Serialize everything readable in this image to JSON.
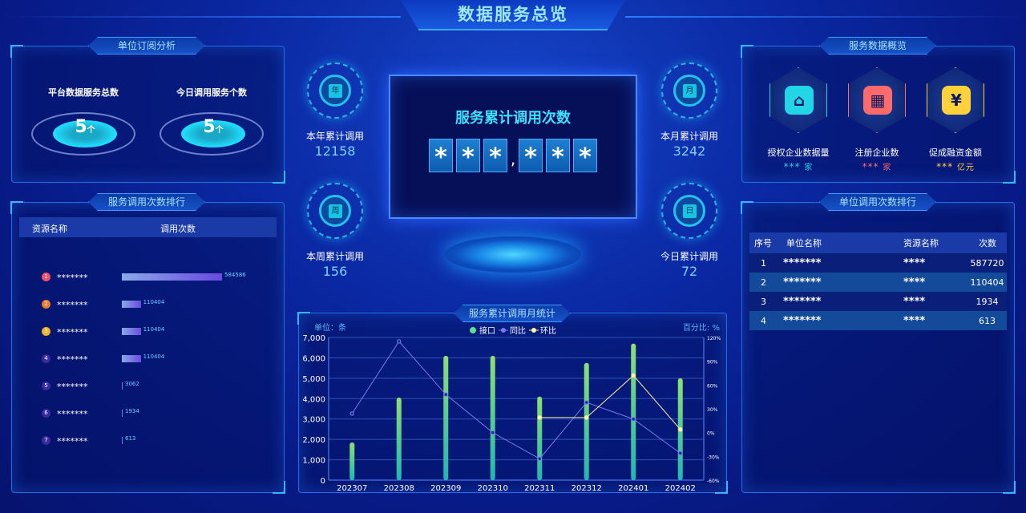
{
  "header": {
    "title": "数据服务总览"
  },
  "subscription": {
    "title": "单位订阅分析",
    "items": [
      {
        "label": "平台数据服务总数",
        "value": "5",
        "unit": "个"
      },
      {
        "label": "今日调用服务个数",
        "value": "5",
        "unit": "个"
      }
    ]
  },
  "service_rank": {
    "title": "服务调用次数排行",
    "columns": [
      "资源名称",
      "调用次数"
    ],
    "rows": [
      {
        "rank": "1",
        "name": "*******",
        "value": 584586,
        "color": "#f0506a"
      },
      {
        "rank": "2",
        "name": "*******",
        "value": 110404,
        "color": "#f07a2a"
      },
      {
        "rank": "3",
        "name": "*******",
        "value": 110404,
        "color": "#f0b02a"
      },
      {
        "rank": "4",
        "name": "*******",
        "value": 110404,
        "color": "#3a2aa0"
      },
      {
        "rank": "5",
        "name": "*******",
        "value": 3062,
        "color": "#3a2aa0"
      },
      {
        "rank": "6",
        "name": "*******",
        "value": 1934,
        "color": "#3a2aa0"
      },
      {
        "rank": "7",
        "name": "*******",
        "value": 613,
        "color": "#3a2aa0"
      }
    ]
  },
  "stats": [
    {
      "icon": "年",
      "label": "本年累计调用",
      "value": "12158"
    },
    {
      "icon": "周",
      "label": "本周累计调用",
      "value": "156"
    },
    {
      "icon": "月",
      "label": "本月累计调用",
      "value": "3242"
    },
    {
      "icon": "日",
      "label": "今日累计调用",
      "value": "72"
    }
  ],
  "total": {
    "title": "服务累计调用次数",
    "digits": [
      "*",
      "*",
      "*",
      ",",
      "*",
      "*",
      "*"
    ]
  },
  "overview": {
    "title": "服务数据概览",
    "items": [
      {
        "icon": "house-check-icon",
        "glyph": "⌂",
        "label": "授权企业数据量",
        "value": "***",
        "unit": "家",
        "color": "#22d6e8"
      },
      {
        "icon": "building-heart-icon",
        "glyph": "▦",
        "label": "注册企业数",
        "value": "***",
        "unit": "家",
        "color": "#ff6a6a"
      },
      {
        "icon": "yuan-coin-icon",
        "glyph": "¥",
        "label": "促成融资金额",
        "value": "***",
        "unit": "亿元",
        "color": "#ffd23a"
      }
    ]
  },
  "unit_rank": {
    "title": "单位调用次数排行",
    "columns": [
      "序号",
      "单位名称",
      "资源名称",
      "次数"
    ],
    "rows": [
      [
        "1",
        "*******",
        "****",
        "587720"
      ],
      [
        "2",
        "*******",
        "****",
        "110404"
      ],
      [
        "3",
        "*******",
        "****",
        "1934"
      ],
      [
        "4",
        "*******",
        "****",
        "613"
      ]
    ]
  },
  "chart_data": {
    "type": "bar",
    "title": "服务累计调用月统计",
    "unit_left": "单位：条",
    "unit_right": "百分比: %",
    "categories": [
      "202307",
      "202308",
      "202309",
      "202310",
      "202311",
      "202312",
      "202401",
      "202402"
    ],
    "ylim": [
      0,
      7000
    ],
    "yticks": [
      "0",
      "1,000",
      "2,000",
      "3,000",
      "4,000",
      "5,000",
      "6,000",
      "7,000"
    ],
    "y2lim": [
      -60,
      120
    ],
    "y2ticks": [
      "-60%",
      "-30%",
      "0%",
      "30%",
      "60%",
      "90%",
      "120%"
    ],
    "legend_position": "top-center",
    "grid": true,
    "series": [
      {
        "name": "接口",
        "type": "bar",
        "color": "#5ee08a",
        "values": [
          1850,
          4050,
          6100,
          6100,
          4100,
          5750,
          6700,
          5000
        ]
      },
      {
        "name": "同比",
        "type": "line",
        "axis": "right",
        "color": "#7a7aee",
        "values": [
          24,
          115,
          48,
          0,
          -33,
          38,
          17,
          -26
        ]
      },
      {
        "name": "环比",
        "type": "line",
        "axis": "right",
        "color": "#fff59a",
        "values": [
          null,
          null,
          null,
          null,
          19,
          19,
          72,
          4
        ]
      }
    ]
  }
}
